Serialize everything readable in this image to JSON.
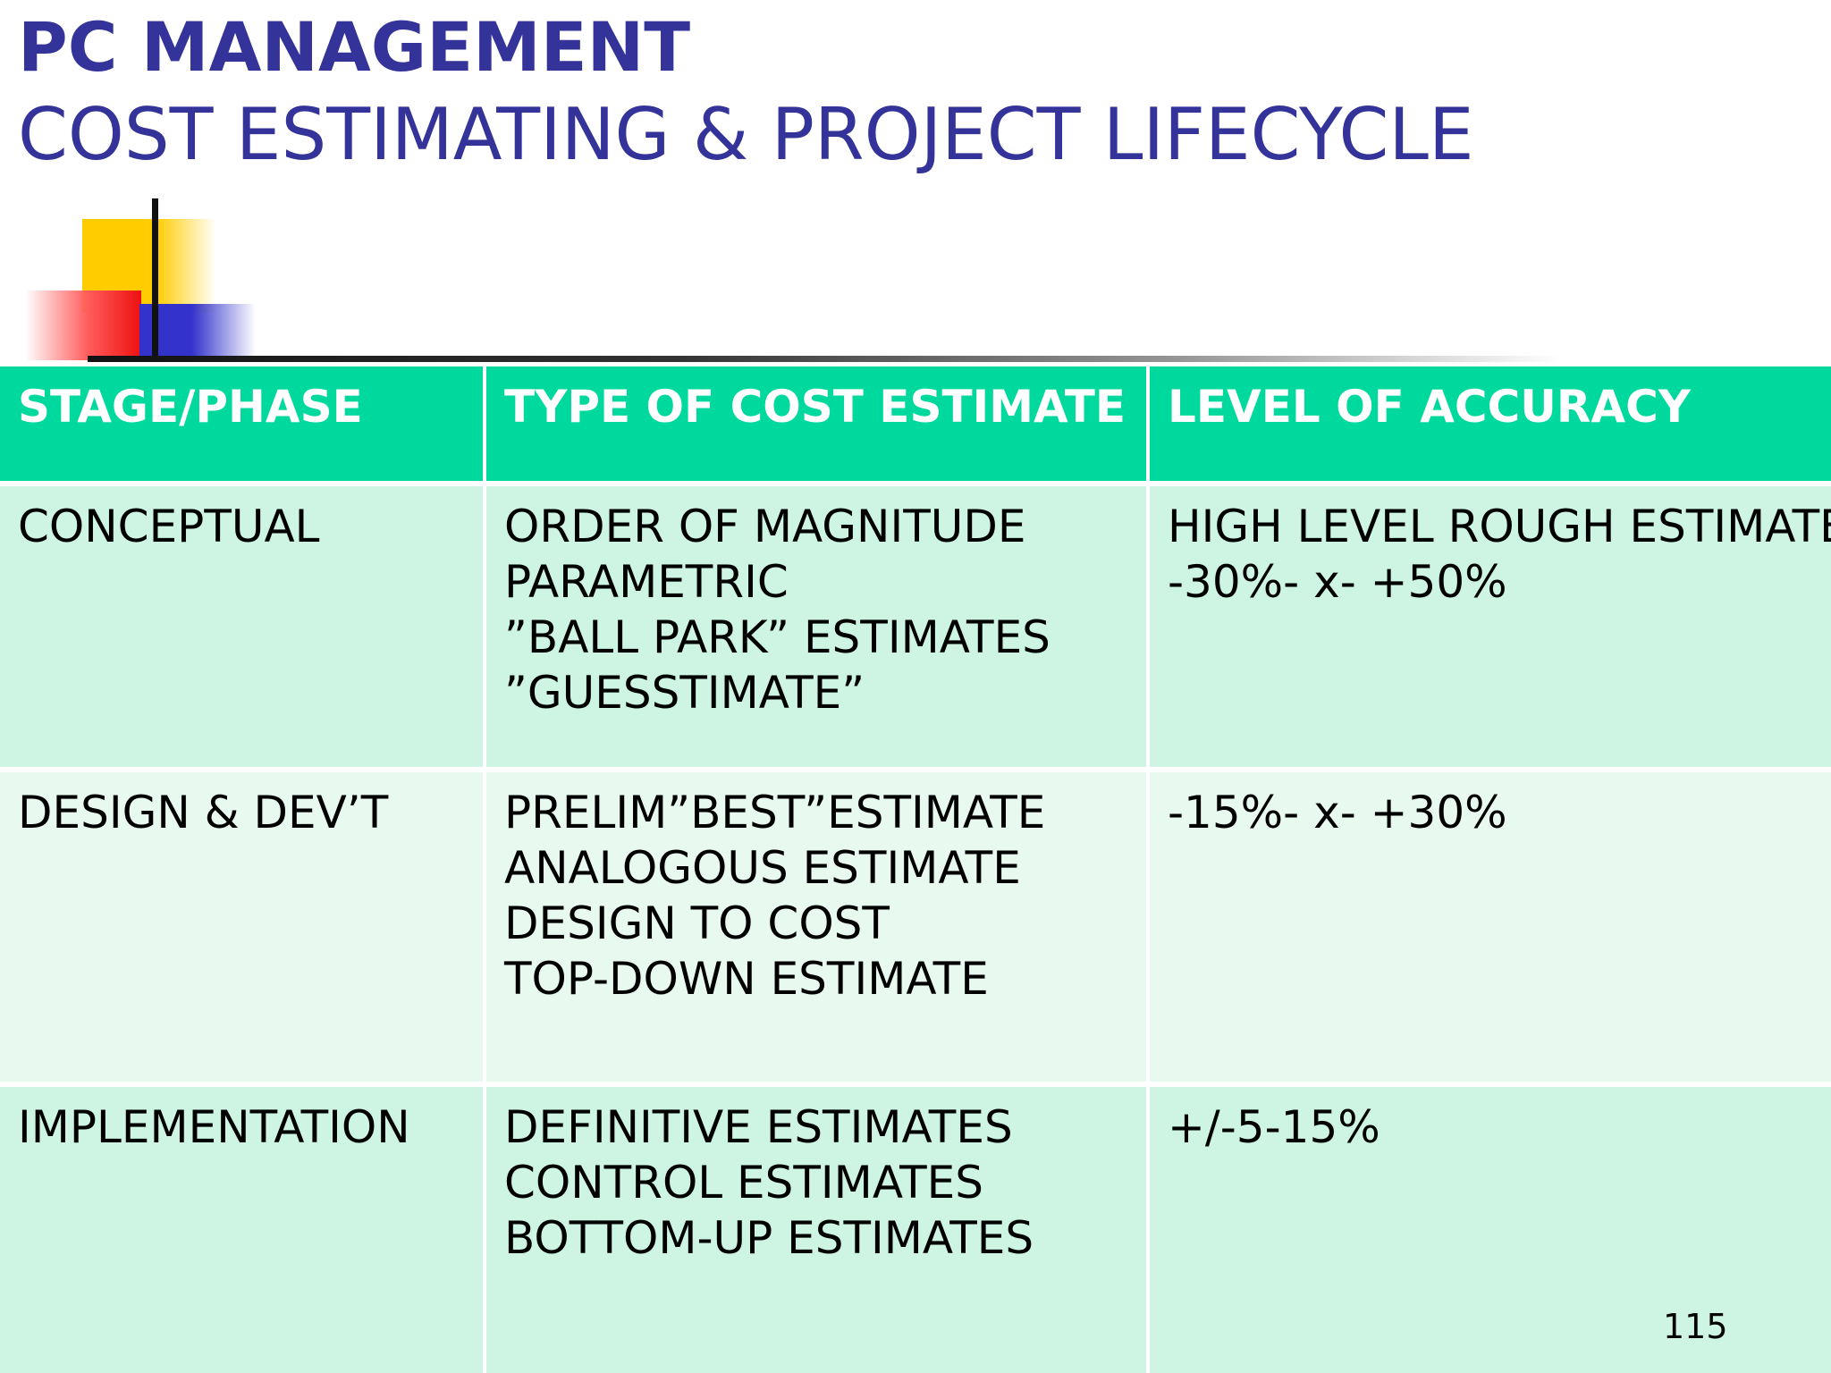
{
  "title": {
    "main": "PC MANAGEMENT",
    "sub": "COST ESTIMATING & PROJECT LIFECYCLE"
  },
  "table": {
    "headers": [
      "STAGE/PHASE",
      "TYPE OF COST ESTIMATE",
      "LEVEL OF ACCURACY"
    ],
    "rows": [
      {
        "stage": "CONCEPTUAL",
        "types": [
          "ORDER OF MAGNITUDE",
          "PARAMETRIC",
          "”BALL PARK” ESTIMATES",
          "”GUESSTIMATE”"
        ],
        "accuracy": [
          "HIGH LEVEL ROUGH ESTIMATE",
          "-30%- x- +50%"
        ]
      },
      {
        "stage": "DESIGN & DEV’T",
        "types": [
          "PRELIM”BEST”ESTIMATE",
          "ANALOGOUS ESTIMATE",
          "DESIGN TO COST",
          "TOP-DOWN ESTIMATE"
        ],
        "accuracy": [
          "-15%- x- +30%"
        ]
      },
      {
        "stage": "IMPLEMENTATION",
        "types": [
          "DEFINITIVE ESTIMATES",
          "CONTROL ESTIMATES",
          "BOTTOM-UP ESTIMATES"
        ],
        "accuracy": [
          "+/-5-15%"
        ]
      }
    ]
  },
  "page_number": "115",
  "colors": {
    "title": "#333399",
    "header_bg": "#00d99d",
    "row_bg_dark": "#cef5e3",
    "row_bg_light": "#e8f9f0"
  }
}
